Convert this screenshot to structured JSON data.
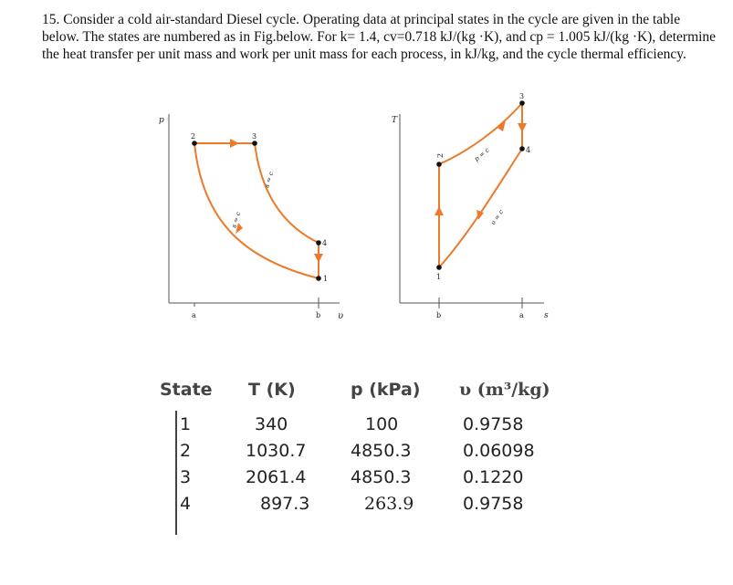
{
  "problem": {
    "text": "15. Consider a cold air-standard Diesel cycle. Operating data at principal states in the cycle are given in the table below. The states are numbered as in Fig.below. For k= 1.4, cv=0.718 kJ/(kg ·K), and cp = 1.005 kJ/(kg ·K), determine the heat transfer per unit mass and work per unit mass for each process, in kJ/kg, and the cycle thermal efficiency."
  },
  "pv_diagram": {
    "y_axis_label": "p",
    "x_axis_label": "υ",
    "tick_a": "a",
    "tick_b": "b",
    "state_labels": [
      "2",
      "3",
      "4",
      "1"
    ],
    "curve_labels": [
      "s = c",
      "s = c"
    ]
  },
  "ts_diagram": {
    "y_axis_label": "T",
    "x_axis_label": "s",
    "tick_b": "b",
    "tick_a": "a",
    "state_labels": [
      "3",
      "2",
      "4",
      "1"
    ],
    "curve_labels": [
      "p = c",
      "υ = c"
    ]
  },
  "table": {
    "headers": [
      "State",
      "T (K)",
      "p (kPa)",
      "υ (m³/kg)"
    ],
    "rows": [
      [
        "1",
        "340",
        "100",
        "0.9758"
      ],
      [
        "2",
        "1030.7",
        "4850.3",
        "0.06098"
      ],
      [
        "3",
        "2061.4",
        "4850.3",
        "0.1220"
      ],
      [
        "4",
        "897.3",
        "263.9",
        "0.9758"
      ]
    ]
  },
  "colors": {
    "process_curve": "#ec7a2a",
    "axis": "#555555",
    "point": "#111111"
  }
}
